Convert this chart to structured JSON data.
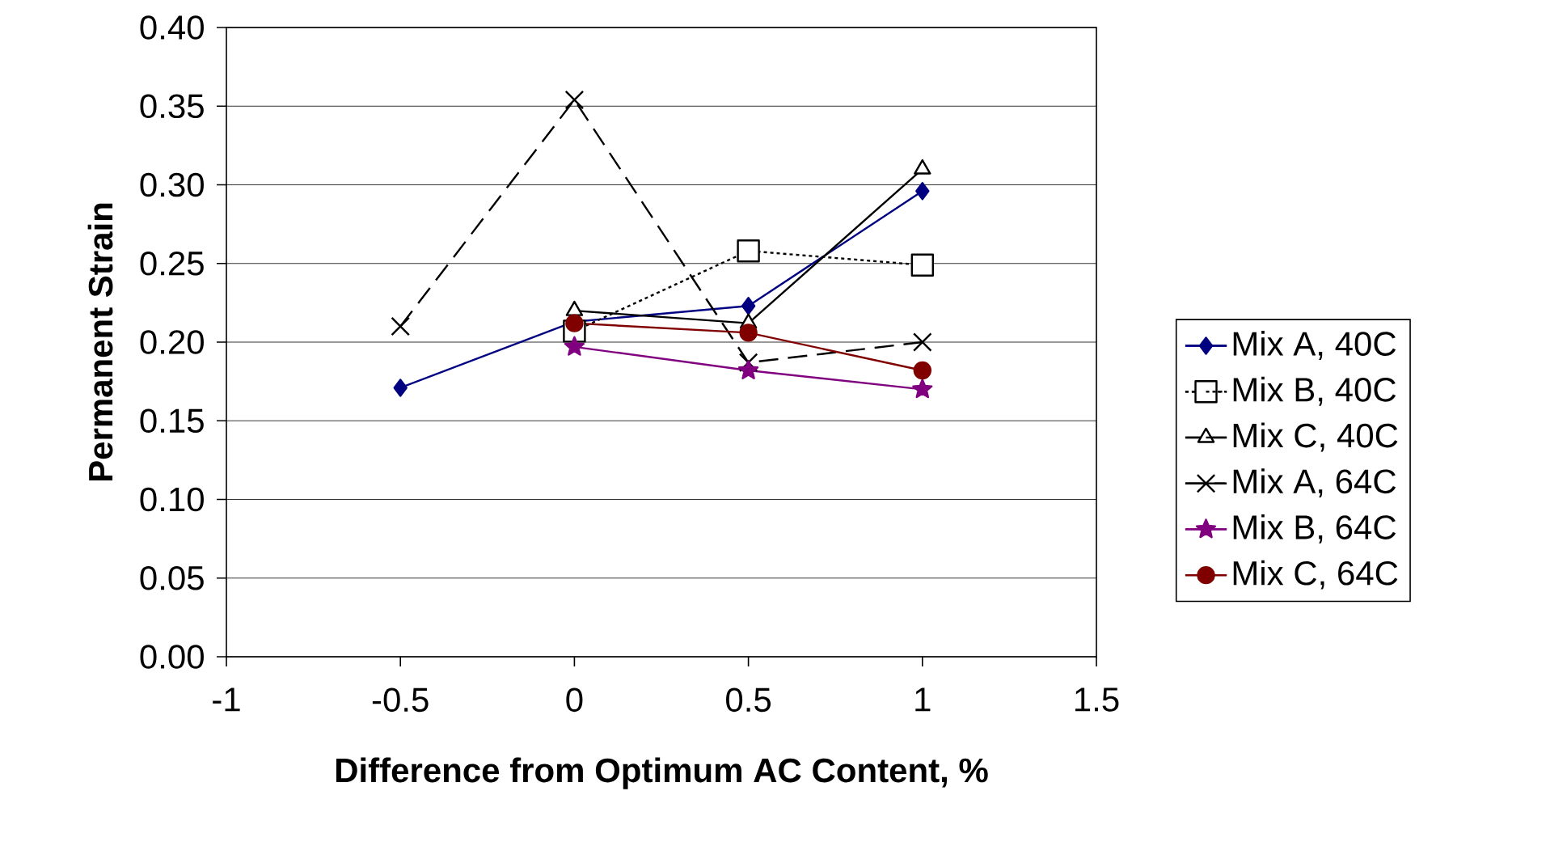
{
  "chart_data": {
    "type": "line",
    "xlabel": "Difference from Optimum AC Content, %",
    "ylabel": "Permanent Strain",
    "xlim": [
      -1,
      1.5
    ],
    "xticks": [
      -1,
      -0.5,
      0,
      0.5,
      1,
      1.5
    ],
    "ylim": [
      0,
      0.4
    ],
    "yticks": [
      {
        "value": 0,
        "label": "0.00"
      },
      {
        "value": 0.05,
        "label": "0.05"
      },
      {
        "value": 0.1,
        "label": "0.10"
      },
      {
        "value": 0.15,
        "label": "0.15"
      },
      {
        "value": 0.2,
        "label": "0.20"
      },
      {
        "value": 0.25,
        "label": "0.25"
      },
      {
        "value": 0.3,
        "label": "0.30"
      },
      {
        "value": 0.35,
        "label": "0.35"
      },
      {
        "value": 0.4,
        "label": "0.40"
      }
    ],
    "grid": "y",
    "legend": "right",
    "series": [
      {
        "name": "Mix A, 40C",
        "color": "#000080",
        "marker": "diamond",
        "line_style": "solid",
        "x": [
          -0.5,
          0,
          0.5,
          1
        ],
        "values": [
          0.171,
          0.213,
          0.223,
          0.296
        ]
      },
      {
        "name": "Mix B, 40C",
        "color": "#000000",
        "marker": "square",
        "line_style": "dotted",
        "x": [
          0,
          0.5,
          1
        ],
        "values": [
          0.207,
          0.258,
          0.249
        ]
      },
      {
        "name": "Mix C, 40C",
        "color": "#000000",
        "marker": "triangle",
        "line_style": "solid",
        "x": [
          0,
          0.5,
          1
        ],
        "values": [
          0.22,
          0.212,
          0.31
        ]
      },
      {
        "name": "Mix A, 64C",
        "color": "#000000",
        "marker": "cross",
        "line_style": "dashed",
        "x": [
          -0.5,
          0,
          0.5,
          1
        ],
        "values": [
          0.21,
          0.354,
          0.187,
          0.2
        ]
      },
      {
        "name": "Mix B, 64C",
        "color": "#800080",
        "marker": "star",
        "line_style": "solid",
        "x": [
          0,
          0.5,
          1
        ],
        "values": [
          0.197,
          0.182,
          0.17
        ]
      },
      {
        "name": "Mix C, 64C",
        "color": "#800000",
        "marker": "circle",
        "line_style": "solid",
        "x": [
          0,
          0.5,
          1
        ],
        "values": [
          0.212,
          0.206,
          0.182
        ]
      }
    ]
  }
}
